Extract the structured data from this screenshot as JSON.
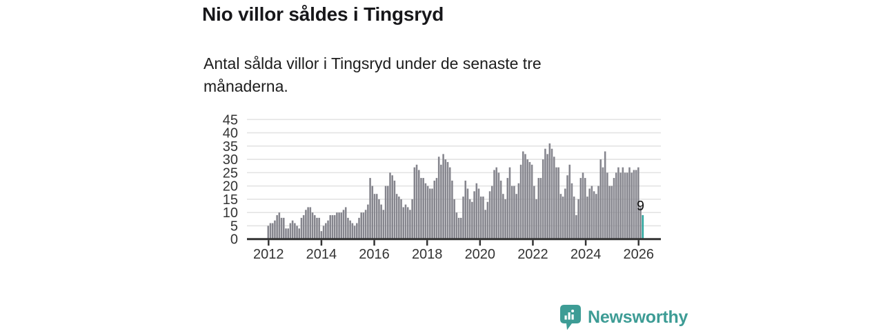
{
  "header": {
    "title": "Nio villor såldes i Tingsryd",
    "subtitle": "Antal sålda villor i Tingsryd under de senaste tre månaderna."
  },
  "chart_data": {
    "type": "bar",
    "title": "Nio villor såldes i Tingsryd",
    "description": "Antal sålda villor i Tingsryd under de senaste tre månaderna.",
    "frequency": "monthly",
    "x_start": "2012-01",
    "x_end": "2026-02",
    "values": [
      5,
      6,
      6,
      7,
      9,
      10,
      8,
      8,
      4,
      4,
      6,
      7,
      6,
      5,
      4,
      8,
      9,
      11,
      12,
      12,
      10,
      9,
      8,
      8,
      3,
      5,
      6,
      7,
      9,
      9,
      9,
      10,
      10,
      10,
      11,
      12,
      8,
      7,
      6,
      5,
      6,
      8,
      10,
      10,
      11,
      13,
      23,
      20,
      17,
      17,
      15,
      13,
      11,
      20,
      20,
      25,
      24,
      22,
      17,
      16,
      15,
      12,
      13,
      12,
      11,
      15,
      27,
      28,
      26,
      23,
      23,
      21,
      20,
      19,
      19,
      22,
      23,
      31,
      28,
      32,
      30,
      29,
      27,
      22,
      15,
      10,
      8,
      8,
      16,
      22,
      19,
      15,
      14,
      18,
      21,
      19,
      16,
      16,
      11,
      14,
      18,
      20,
      26,
      27,
      25,
      22,
      17,
      15,
      23,
      27,
      20,
      20,
      17,
      21,
      28,
      33,
      32,
      30,
      29,
      28,
      20,
      15,
      23,
      23,
      30,
      34,
      32,
      36,
      34,
      31,
      27,
      27,
      17,
      16,
      19,
      24,
      28,
      21,
      16,
      9,
      15,
      23,
      25,
      23,
      16,
      19,
      20,
      18,
      17,
      20,
      30,
      27,
      33,
      25,
      20,
      20,
      23,
      25,
      27,
      25,
      27,
      25,
      25,
      27,
      25,
      26,
      26,
      27,
      12,
      9
    ],
    "highlight": {
      "position": "last",
      "value": 9,
      "label": "9",
      "color": "#2aa49c"
    },
    "bar_color": "#85858d",
    "ylim": [
      0,
      45
    ],
    "yticks": [
      0,
      5,
      10,
      15,
      20,
      25,
      30,
      35,
      40,
      45
    ],
    "xticks": [
      "2012",
      "2014",
      "2016",
      "2018",
      "2020",
      "2022",
      "2024",
      "2026"
    ],
    "grid": "horizontal",
    "legend": "none"
  },
  "footer": {
    "brand": "Newsworthy"
  },
  "colors": {
    "accent": "#2aa49c",
    "bar": "#85858d",
    "brand": "#3d9c95",
    "axis": "#333333",
    "grid": "#e3e3e3",
    "text": "#17171a"
  }
}
